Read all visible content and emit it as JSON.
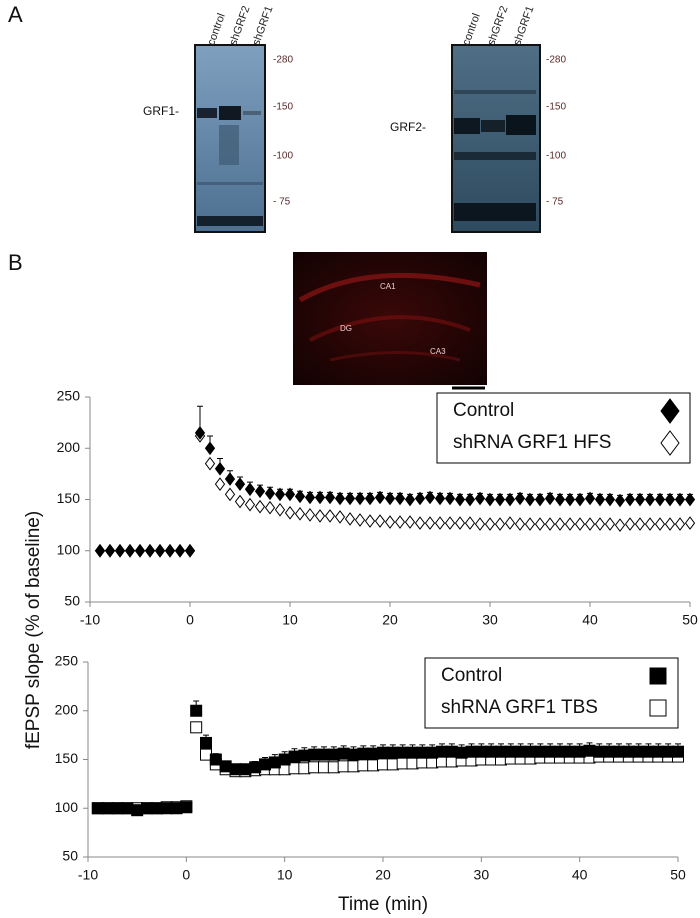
{
  "panel_labels": [
    "A",
    "B"
  ],
  "blot1": {
    "lanes": [
      "control",
      "shGRF2",
      "shGRF1"
    ],
    "band_label": "GRF1-",
    "markers": [
      "-280",
      "-150",
      "-100",
      "- 75"
    ]
  },
  "blot2": {
    "lanes": [
      "control",
      "shGRF2",
      "shGRF1"
    ],
    "band_label": "GRF2-",
    "markers": [
      "-280",
      "-150",
      "-100",
      "- 75"
    ]
  },
  "image_labels": [
    "CA1",
    "DG",
    "CA3"
  ],
  "shared_ylabel": "fEPSP slope (% of baseline)",
  "chart_data": [
    {
      "type": "scatter",
      "legend": "upper right",
      "x": [
        -9,
        -8,
        -7,
        -6,
        -5,
        -4,
        -3,
        -2,
        -1,
        0,
        1,
        2,
        3,
        4,
        5,
        6,
        7,
        8,
        9,
        10,
        11,
        12,
        13,
        14,
        15,
        16,
        17,
        18,
        19,
        20,
        21,
        22,
        23,
        24,
        25,
        26,
        27,
        28,
        29,
        30,
        31,
        32,
        33,
        34,
        35,
        36,
        37,
        38,
        39,
        40,
        41,
        42,
        43,
        44,
        45,
        46,
        47,
        48,
        49,
        50
      ],
      "xlim": [
        -10,
        50
      ],
      "xticks": [
        -10,
        0,
        10,
        20,
        30,
        40,
        50
      ],
      "ylim": [
        50,
        250
      ],
      "yticks": [
        50,
        100,
        150,
        200,
        250
      ],
      "series": [
        {
          "name": "Control",
          "marker": "diamond",
          "color": "#000000",
          "values": [
            100,
            100,
            100,
            100,
            100,
            100,
            100,
            100,
            100,
            100,
            215,
            200,
            180,
            170,
            165,
            160,
            158,
            156,
            155,
            155,
            153,
            152,
            152,
            152,
            151,
            151,
            151,
            151,
            152,
            151,
            151,
            150,
            151,
            152,
            151,
            151,
            150,
            150,
            151,
            150,
            150,
            150,
            151,
            150,
            150,
            151,
            150,
            150,
            150,
            151,
            150,
            150,
            149,
            150,
            150,
            150,
            150,
            150,
            150,
            150
          ],
          "errors": [
            2,
            2,
            2,
            2,
            2,
            2,
            2,
            2,
            2,
            2,
            26,
            12,
            10,
            8,
            7,
            7,
            6,
            6,
            5,
            5,
            5,
            5,
            5,
            5,
            5,
            5,
            5,
            5,
            5,
            5,
            5,
            5,
            5,
            5,
            5,
            5,
            5,
            5,
            5,
            5,
            5,
            5,
            5,
            5,
            5,
            5,
            5,
            5,
            5,
            5,
            5,
            5,
            5,
            5,
            5,
            5,
            5,
            5,
            5,
            5
          ]
        },
        {
          "name": "shRNA GRF1 HFS",
          "marker": "diamond",
          "color": "#ffffff",
          "values": [
            100,
            100,
            100,
            100,
            100,
            100,
            100,
            100,
            100,
            100,
            212,
            185,
            165,
            155,
            148,
            145,
            143,
            142,
            140,
            137,
            136,
            135,
            134,
            134,
            133,
            131,
            130,
            129,
            129,
            128,
            128,
            128,
            127,
            127,
            127,
            127,
            127,
            127,
            126,
            126,
            126,
            127,
            126,
            126,
            126,
            126,
            126,
            126,
            126,
            126,
            126,
            126,
            125,
            126,
            126,
            126,
            126,
            126,
            126,
            127
          ]
        }
      ]
    },
    {
      "type": "scatter",
      "legend": "upper right",
      "xlabel": "Time (min)",
      "x": [
        -9,
        -8,
        -7,
        -6,
        -5,
        -4,
        -3,
        -2,
        -1,
        0,
        1,
        2,
        3,
        4,
        5,
        6,
        7,
        8,
        9,
        10,
        11,
        12,
        13,
        14,
        15,
        16,
        17,
        18,
        19,
        20,
        21,
        22,
        23,
        24,
        25,
        26,
        27,
        28,
        29,
        30,
        31,
        32,
        33,
        34,
        35,
        36,
        37,
        38,
        39,
        40,
        41,
        42,
        43,
        44,
        45,
        46,
        47,
        48,
        49,
        50
      ],
      "xlim": [
        -10,
        50
      ],
      "xticks": [
        -10,
        0,
        10,
        20,
        30,
        40,
        50
      ],
      "ylim": [
        50,
        250
      ],
      "yticks": [
        50,
        100,
        150,
        200,
        250
      ],
      "series": [
        {
          "name": "Control",
          "marker": "square",
          "color": "#000000",
          "values": [
            100,
            100,
            100,
            100,
            98,
            100,
            100,
            100,
            100,
            101,
            200,
            167,
            150,
            143,
            140,
            140,
            142,
            145,
            147,
            150,
            153,
            154,
            155,
            155,
            155,
            156,
            155,
            156,
            156,
            157,
            157,
            157,
            157,
            157,
            157,
            158,
            158,
            157,
            158,
            158,
            158,
            158,
            158,
            158,
            158,
            158,
            158,
            158,
            158,
            158,
            159,
            158,
            158,
            158,
            158,
            158,
            158,
            158,
            158,
            158
          ],
          "errors": [
            3,
            3,
            3,
            3,
            3,
            3,
            3,
            3,
            3,
            3,
            10,
            8,
            6,
            5,
            5,
            5,
            6,
            7,
            8,
            8,
            8,
            8,
            8,
            8,
            8,
            8,
            8,
            8,
            8,
            8,
            8,
            8,
            8,
            8,
            8,
            8,
            8,
            8,
            8,
            8,
            8,
            8,
            8,
            8,
            8,
            8,
            8,
            8,
            8,
            8,
            8,
            8,
            8,
            8,
            8,
            8,
            8,
            8,
            8,
            8
          ]
        },
        {
          "name": "shRNA GRF1 TBS",
          "marker": "square",
          "color": "#ffffff",
          "values": [
            100,
            100,
            100,
            100,
            100,
            100,
            100,
            101,
            101,
            102,
            183,
            155,
            145,
            140,
            138,
            138,
            139,
            140,
            140,
            140,
            141,
            141,
            142,
            142,
            142,
            143,
            143,
            144,
            144,
            145,
            145,
            146,
            146,
            147,
            147,
            148,
            148,
            149,
            149,
            150,
            150,
            150,
            151,
            151,
            151,
            152,
            152,
            152,
            152,
            152,
            152,
            153,
            153,
            153,
            153,
            153,
            153,
            153,
            153,
            153
          ]
        }
      ]
    }
  ]
}
